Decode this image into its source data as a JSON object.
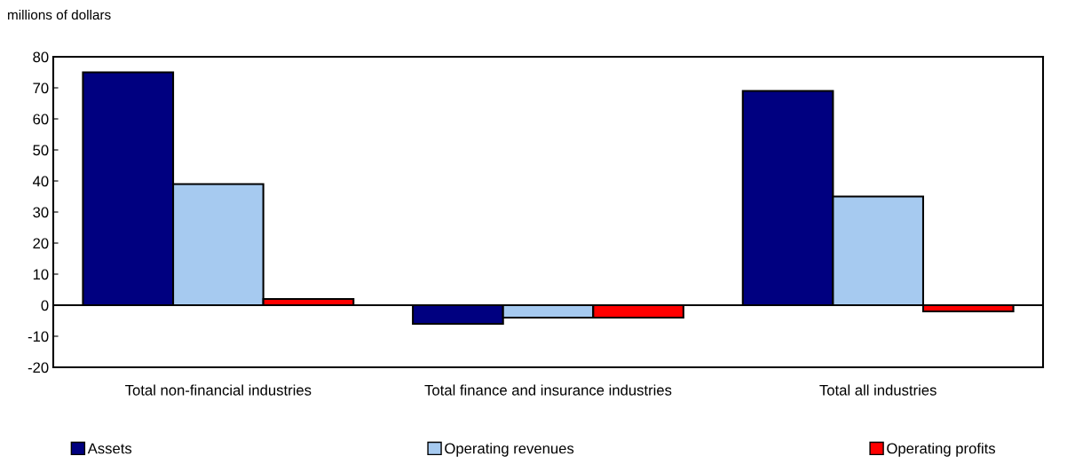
{
  "chart_data": {
    "type": "bar",
    "ylabel": "millions of dollars",
    "categories": [
      "Total non-financial industries",
      "Total finance and insurance industries",
      "Total all industries"
    ],
    "series": [
      {
        "name": "Assets",
        "color": "#000080",
        "values": [
          75,
          -6,
          69
        ]
      },
      {
        "name": "Operating revenues",
        "color": "#a6caf0",
        "values": [
          39,
          -4,
          35
        ]
      },
      {
        "name": "Operating profits",
        "color": "#ff0000",
        "values": [
          2,
          -4,
          -2
        ]
      }
    ],
    "ylim": [
      -20,
      80
    ],
    "yticks": [
      -20,
      -10,
      0,
      10,
      20,
      30,
      40,
      50,
      60,
      70,
      80
    ],
    "legend": "bottom"
  }
}
